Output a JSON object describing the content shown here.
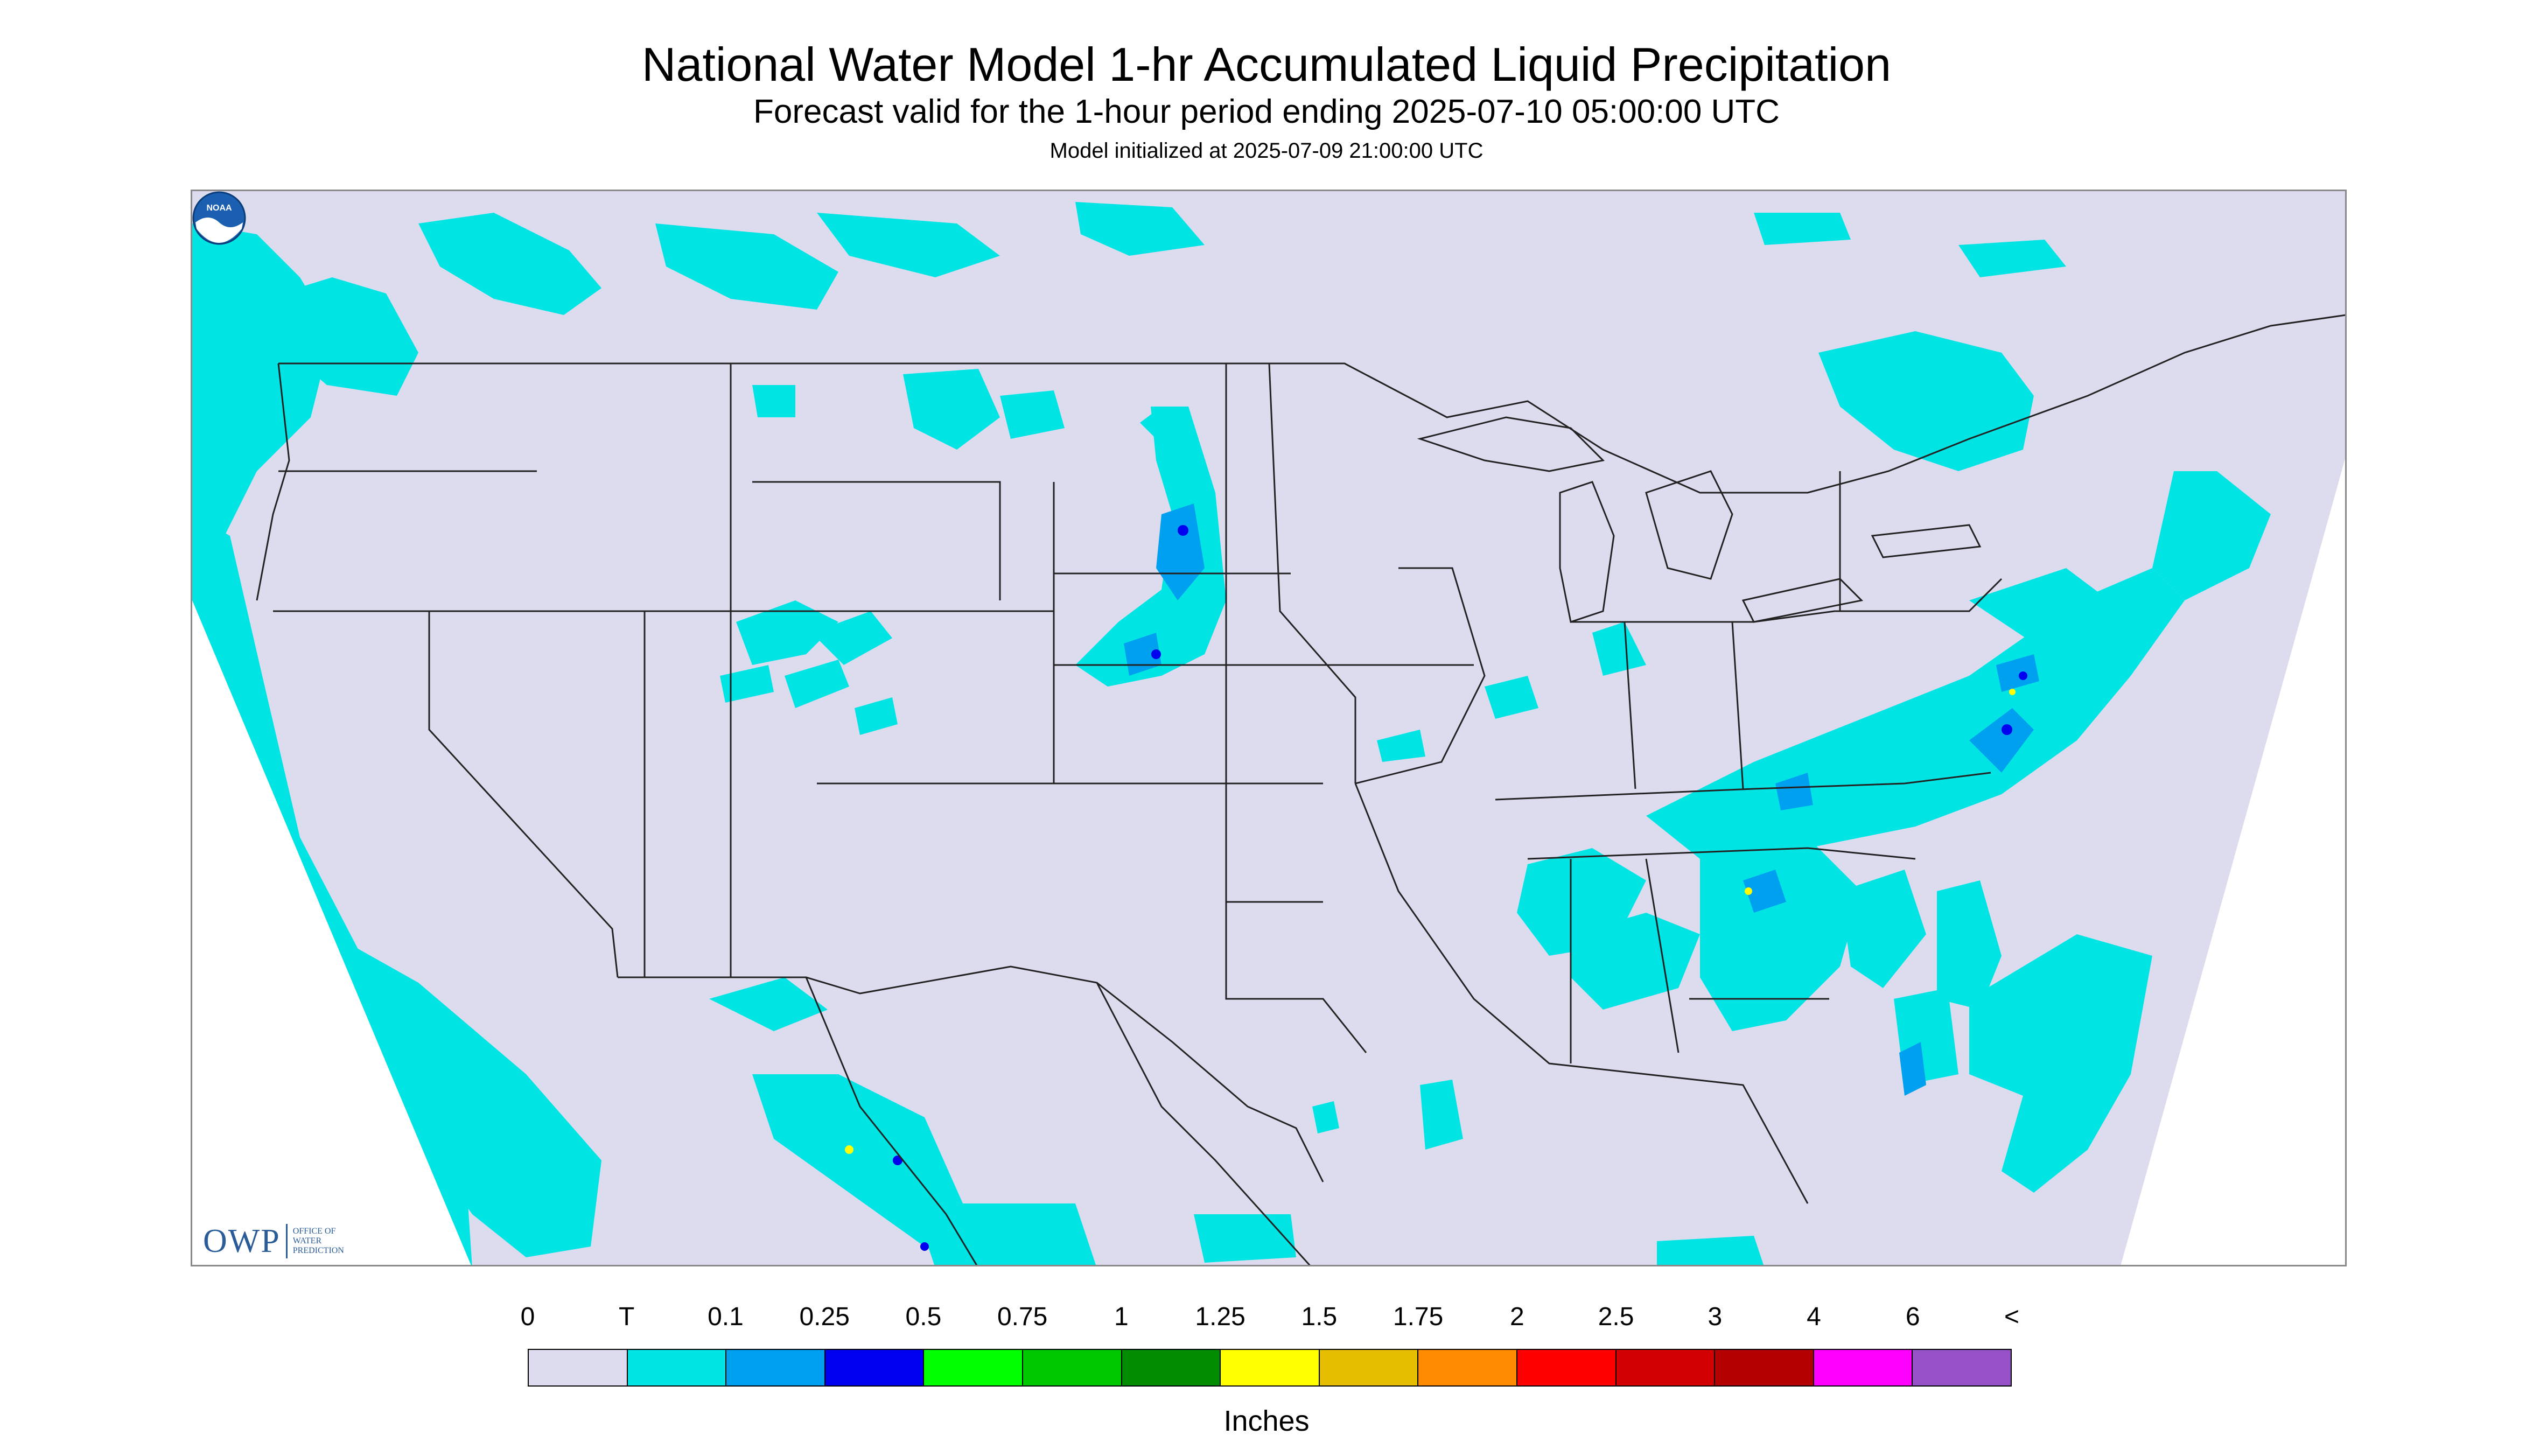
{
  "title": "National Water Model 1-hr Accumulated Liquid Precipitation",
  "subtitle": "Forecast valid for the 1-hour period ending 2025-07-10 05:00:00 UTC",
  "init_text": "Model initialized at 2025-07-09 21:00:00 UTC",
  "logo": {
    "owp_mark": "OWP",
    "owp_text_1": "OFFICE OF",
    "owp_text_2": "WATER",
    "owp_text_3": "PREDICTION",
    "noaa_text": "NOAA"
  },
  "legend": {
    "units": "Inches",
    "tick_labels": [
      "0",
      "T",
      "0.1",
      "0.25",
      "0.5",
      "0.75",
      "1",
      "1.25",
      "1.5",
      "1.75",
      "2",
      "2.5",
      "3",
      "4",
      "6",
      "<"
    ],
    "colors": [
      "#dcdcee",
      "#00e4e4",
      "#00a0f0",
      "#0000f0",
      "#00ff00",
      "#00c800",
      "#008c00",
      "#ffff00",
      "#e6be00",
      "#ff8c00",
      "#ff0000",
      "#d20000",
      "#b40000",
      "#ff00ff",
      "#9650c8"
    ]
  },
  "colors": {
    "domain": "#dcdcee",
    "trace": "#00e4e4",
    "light": "#00a0f0",
    "moderate": "#0000f0",
    "heavy": "#ffff00",
    "outside": "#ffffff",
    "borders": "#222222"
  }
}
